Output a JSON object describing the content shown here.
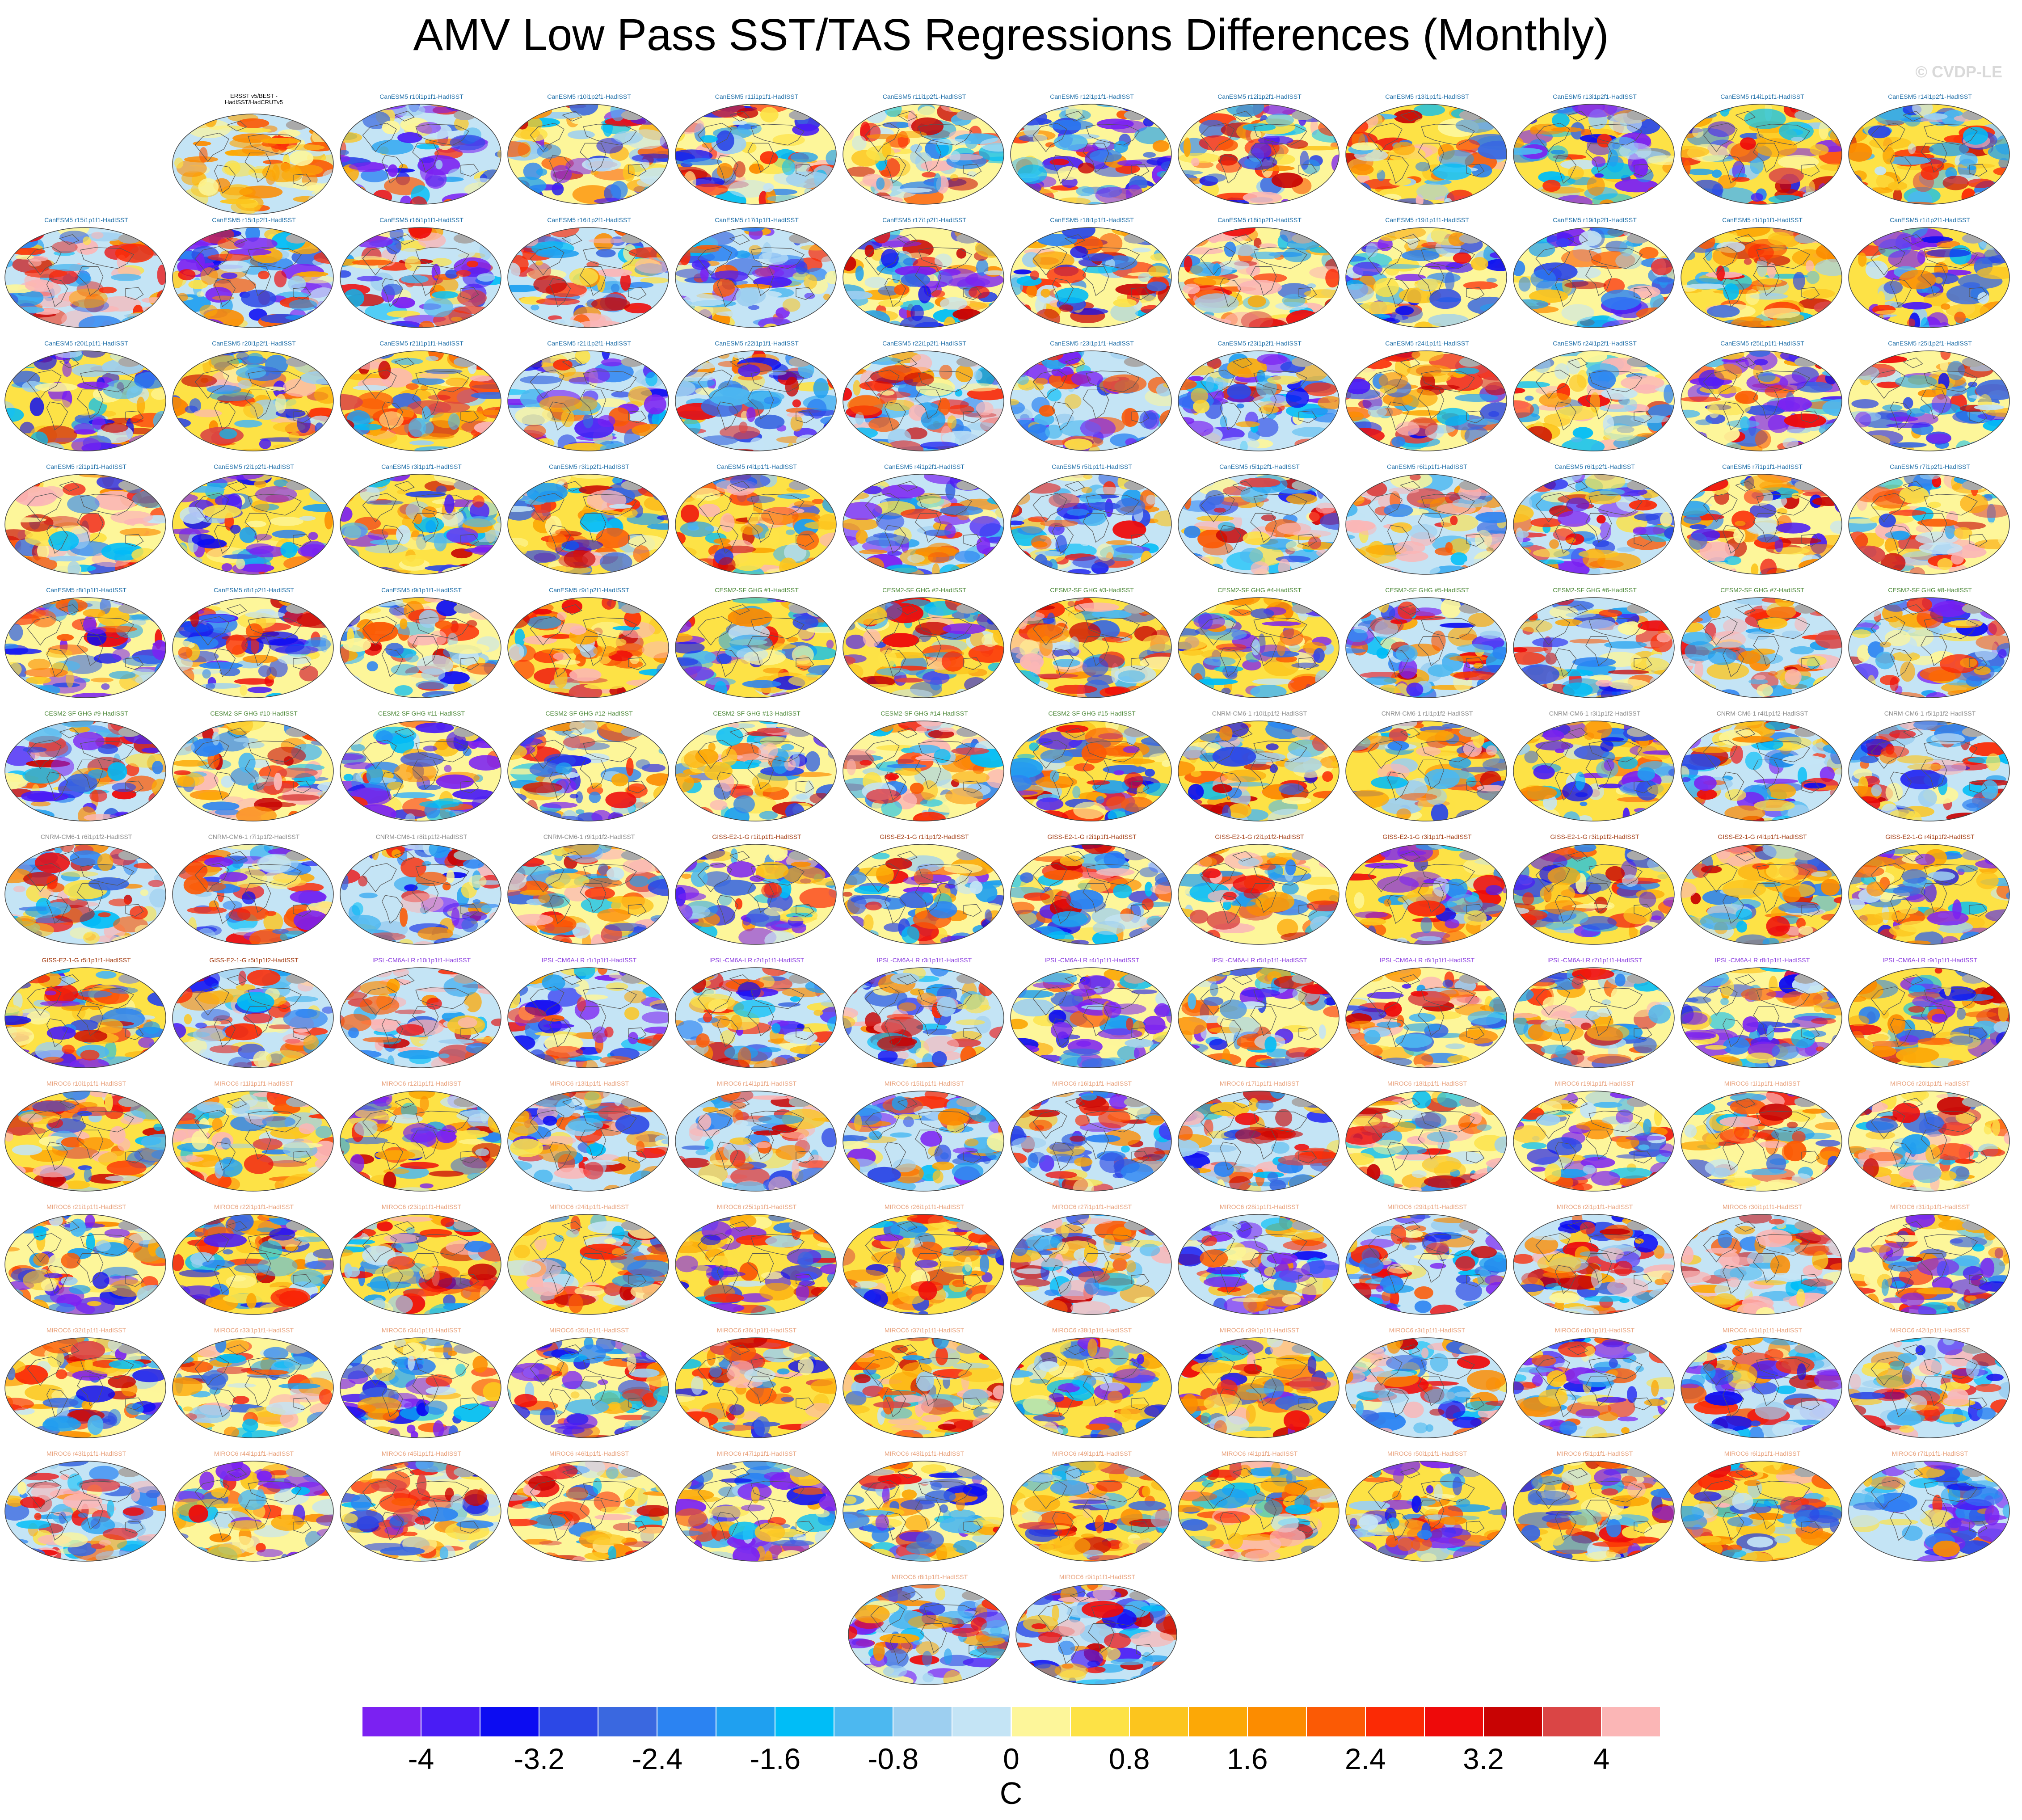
{
  "title": "AMV Low Pass SST/TAS Regressions Differences (Monthly)",
  "watermark": "© CVDP-LE",
  "chart_data": {
    "type": "heatmap",
    "description": "Grid of global map panels showing regression difference fields; each panel labeled by ensemble member minus observations.",
    "colorbar": {
      "units": "C",
      "tick_labels": [
        "-4",
        "-3.2",
        "-2.4",
        "-1.6",
        "-0.8",
        "0",
        "0.8",
        "1.6",
        "2.4",
        "3.2",
        "4"
      ],
      "ticks": [
        -4,
        -3.2,
        -2.4,
        -1.6,
        -0.8,
        0,
        0.8,
        1.6,
        2.4,
        3.2,
        4
      ],
      "range": [
        -4.4,
        4.4
      ],
      "colors": [
        "#7b21f2",
        "#4a1cf5",
        "#0c0cf2",
        "#2c48e6",
        "#3a68e0",
        "#2b83f2",
        "#1fa0f0",
        "#00bdf7",
        "#4cb8f0",
        "#9dcff0",
        "#c4e4f5",
        "#fdf69a",
        "#fde246",
        "#fcc51e",
        "#fca806",
        "#fc8c00",
        "#fb5a05",
        "#fb2a05",
        "#ee0a0a",
        "#c80303",
        "#da4545",
        "#fbb6b6"
      ]
    },
    "panel_titles": [
      "ERSST v5/BEST -\nHadISST/HadCRUTv5",
      "CanESM5 r10i1p1f1-HadISST",
      "CanESM5 r10i1p2f1-HadISST",
      "CanESM5 r11i1p1f1-HadISST",
      "CanESM5 r11i1p2f1-HadISST",
      "CanESM5 r12i1p1f1-HadISST",
      "CanESM5 r12i1p2f1-HadISST",
      "CanESM5 r13i1p1f1-HadISST",
      "CanESM5 r13i1p2f1-HadISST",
      "CanESM5 r14i1p1f1-HadISST",
      "CanESM5 r14i1p2f1-HadISST",
      "CanESM5 r15i1p1f1-HadISST",
      "CanESM5 r15i1p2f1-HadISST",
      "CanESM5 r16i1p1f1-HadISST",
      "CanESM5 r16i1p2f1-HadISST",
      "CanESM5 r17i1p1f1-HadISST",
      "CanESM5 r17i1p2f1-HadISST",
      "CanESM5 r18i1p1f1-HadISST",
      "CanESM5 r18i1p2f1-HadISST",
      "CanESM5 r19i1p1f1-HadISST",
      "CanESM5 r19i1p2f1-HadISST",
      "CanESM5 r1i1p1f1-HadISST",
      "CanESM5 r1i1p2f1-HadISST",
      "CanESM5 r20i1p1f1-HadISST",
      "CanESM5 r20i1p2f1-HadISST",
      "CanESM5 r21i1p1f1-HadISST",
      "CanESM5 r21i1p2f1-HadISST",
      "CanESM5 r22i1p1f1-HadISST",
      "CanESM5 r22i1p2f1-HadISST",
      "CanESM5 r23i1p1f1-HadISST",
      "CanESM5 r23i1p2f1-HadISST",
      "CanESM5 r24i1p1f1-HadISST",
      "CanESM5 r24i1p2f1-HadISST",
      "CanESM5 r25i1p1f1-HadISST",
      "CanESM5 r25i1p2f1-HadISST",
      "CanESM5 r2i1p1f1-HadISST",
      "CanESM5 r2i1p2f1-HadISST",
      "CanESM5 r3i1p1f1-HadISST",
      "CanESM5 r3i1p2f1-HadISST",
      "CanESM5 r4i1p1f1-HadISST",
      "CanESM5 r4i1p2f1-HadISST",
      "CanESM5 r5i1p1f1-HadISST",
      "CanESM5 r5i1p2f1-HadISST",
      "CanESM5 r6i1p1f1-HadISST",
      "CanESM5 r6i1p2f1-HadISST",
      "CanESM5 r7i1p1f1-HadISST",
      "CanESM5 r7i1p2f1-HadISST",
      "CanESM5 r8i1p1f1-HadISST",
      "CanESM5 r8i1p2f1-HadISST",
      "CanESM5 r9i1p1f1-HadISST",
      "CanESM5 r9i1p2f1-HadISST",
      "CESM2-SF GHG #1-HadISST",
      "CESM2-SF GHG #2-HadISST",
      "CESM2-SF GHG #3-HadISST",
      "CESM2-SF GHG #4-HadISST",
      "CESM2-SF GHG #5-HadISST",
      "CESM2-SF GHG #6-HadISST",
      "CESM2-SF GHG #7-HadISST",
      "CESM2-SF GHG #8-HadISST",
      "CESM2-SF GHG #9-HadISST",
      "CESM2-SF GHG #10-HadISST",
      "CESM2-SF GHG #11-HadISST",
      "CESM2-SF GHG #12-HadISST",
      "CESM2-SF GHG #13-HadISST",
      "CESM2-SF GHG #14-HadISST",
      "CESM2-SF GHG #15-HadISST",
      "CNRM-CM6-1 r10i1p1f2-HadISST",
      "CNRM-CM6-1 r1i1p1f2-HadISST",
      "CNRM-CM6-1 r3i1p1f2-HadISST",
      "CNRM-CM6-1 r4i1p1f2-HadISST",
      "CNRM-CM6-1 r5i1p1f2-HadISST",
      "CNRM-CM6-1 r6i1p1f2-HadISST",
      "CNRM-CM6-1 r7i1p1f2-HadISST",
      "CNRM-CM6-1 r8i1p1f2-HadISST",
      "CNRM-CM6-1 r9i1p1f2-HadISST",
      "GISS-E2-1-G r1i1p1f1-HadISST",
      "GISS-E2-1-G r1i1p1f2-HadISST",
      "GISS-E2-1-G r2i1p1f1-HadISST",
      "GISS-E2-1-G r2i1p1f2-HadISST",
      "GISS-E2-1-G r3i1p1f1-HadISST",
      "GISS-E2-1-G r3i1p1f2-HadISST",
      "GISS-E2-1-G r4i1p1f1-HadISST",
      "GISS-E2-1-G r4i1p1f2-HadISST",
      "GISS-E2-1-G r5i1p1f1-HadISST",
      "GISS-E2-1-G r5i1p1f2-HadISST",
      "IPSL-CM6A-LR r10i1p1f1-HadISST",
      "IPSL-CM6A-LR r1i1p1f1-HadISST",
      "IPSL-CM6A-LR r2i1p1f1-HadISST",
      "IPSL-CM6A-LR r3i1p1f1-HadISST",
      "IPSL-CM6A-LR r4i1p1f1-HadISST",
      "IPSL-CM6A-LR r5i1p1f1-HadISST",
      "IPSL-CM6A-LR r6i1p1f1-HadISST",
      "IPSL-CM6A-LR r7i1p1f1-HadISST",
      "IPSL-CM6A-LR r8i1p1f1-HadISST",
      "IPSL-CM6A-LR r9i1p1f1-HadISST",
      "MIROC6 r10i1p1f1-HadISST",
      "MIROC6 r11i1p1f1-HadISST",
      "MIROC6 r12i1p1f1-HadISST",
      "MIROC6 r13i1p1f1-HadISST",
      "MIROC6 r14i1p1f1-HadISST",
      "MIROC6 r15i1p1f1-HadISST",
      "MIROC6 r16i1p1f1-HadISST",
      "MIROC6 r17i1p1f1-HadISST",
      "MIROC6 r18i1p1f1-HadISST",
      "MIROC6 r19i1p1f1-HadISST",
      "MIROC6 r1i1p1f1-HadISST",
      "MIROC6 r20i1p1f1-HadISST",
      "MIROC6 r21i1p1f1-HadISST",
      "MIROC6 r22i1p1f1-HadISST",
      "MIROC6 r23i1p1f1-HadISST",
      "MIROC6 r24i1p1f1-HadISST",
      "MIROC6 r25i1p1f1-HadISST",
      "MIROC6 r26i1p1f1-HadISST",
      "MIROC6 r27i1p1f1-HadISST",
      "MIROC6 r28i1p1f1-HadISST",
      "MIROC6 r29i1p1f1-HadISST",
      "MIROC6 r2i1p1f1-HadISST",
      "MIROC6 r30i1p1f1-HadISST",
      "MIROC6 r31i1p1f1-HadISST",
      "MIROC6 r32i1p1f1-HadISST",
      "MIROC6 r33i1p1f1-HadISST",
      "MIROC6 r34i1p1f1-HadISST",
      "MIROC6 r35i1p1f1-HadISST",
      "MIROC6 r36i1p1f1-HadISST",
      "MIROC6 r37i1p1f1-HadISST",
      "MIROC6 r38i1p1f1-HadISST",
      "MIROC6 r39i1p1f1-HadISST",
      "MIROC6 r3i1p1f1-HadISST",
      "MIROC6 r40i1p1f1-HadISST",
      "MIROC6 r41i1p1f1-HadISST",
      "MIROC6 r42i1p1f1-HadISST",
      "MIROC6 r43i1p1f1-HadISST",
      "MIROC6 r44i1p1f1-HadISST",
      "MIROC6 r45i1p1f1-HadISST",
      "MIROC6 r46i1p1f1-HadISST",
      "MIROC6 r47i1p1f1-HadISST",
      "MIROC6 r48i1p1f1-HadISST",
      "MIROC6 r49i1p1f1-HadISST",
      "MIROC6 r4i1p1f1-HadISST",
      "MIROC6 r50i1p1f1-HadISST",
      "MIROC6 r5i1p1f1-HadISST",
      "MIROC6 r6i1p1f1-HadISST",
      "MIROC6 r7i1p1f1-HadISST",
      "MIROC6 r8i1p1f1-HadISST",
      "MIROC6 r9i1p1f1-HadISST"
    ],
    "model_title_colors": {
      "obs": "#000000",
      "CanESM5": "#1f6fa8",
      "CESM2-SF": "#4e8a3a",
      "CNRM-CM6-1": "#8a8a8a",
      "GISS-E2-1-G": "#a33c12",
      "IPSL-CM6A-LR": "#8c3fe0",
      "MIROC6": "#e8a07a"
    }
  }
}
